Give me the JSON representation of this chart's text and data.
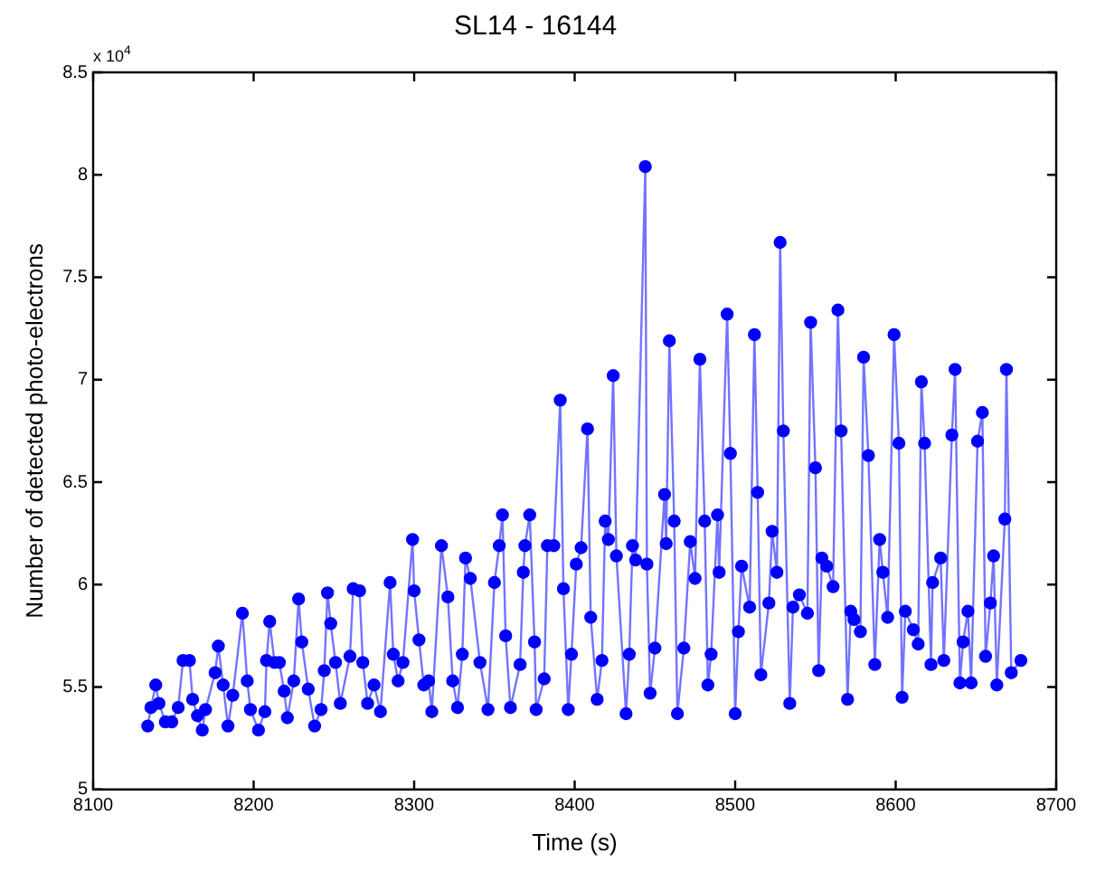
{
  "chart_data": {
    "type": "line",
    "title": "SL14 - 16144",
    "xlabel": "Time (s)",
    "ylabel": "Number of detected photo-electrons",
    "annotations": [
      "x 10$^{4}$"
    ],
    "xlim": [
      8100,
      8700
    ],
    "xticks": [
      8100,
      8200,
      8300,
      8400,
      8500,
      8600,
      8700
    ],
    "ylim": [
      5,
      8.5
    ],
    "yticks": [
      5,
      5.5,
      6,
      6.5,
      7,
      7.5,
      8,
      8.5
    ],
    "grid": false,
    "legend": false,
    "marker": "circle",
    "line_style": "solid",
    "series": [
      {
        "color": "#0000ff",
        "x": [
          8134,
          8136,
          8139,
          8141,
          8145,
          8149,
          8153,
          8156,
          8160,
          8162,
          8165,
          8168,
          8170,
          8176,
          8178,
          8181,
          8184,
          8187,
          8193,
          8196,
          8198,
          8203,
          8207,
          8208,
          8210,
          8213,
          8216,
          8219,
          8221,
          8225,
          8228,
          8230,
          8234,
          8238,
          8242,
          8244,
          8246,
          8248,
          8251,
          8254,
          8260,
          8262,
          8266,
          8268,
          8271,
          8275,
          8279,
          8285,
          8287,
          8290,
          8293,
          8299,
          8300,
          8303,
          8306,
          8309,
          8311,
          8317,
          8321,
          8324,
          8327,
          8330,
          8332,
          8335,
          8341,
          8346,
          8350,
          8353,
          8355,
          8357,
          8360,
          8366,
          8368,
          8369,
          8372,
          8375,
          8376,
          8381,
          8383,
          8387,
          8391,
          8393,
          8396,
          8398,
          8401,
          8404,
          8408,
          8410,
          8414,
          8417,
          8419,
          8421,
          8424,
          8426,
          8432,
          8434,
          8436,
          8438,
          8444,
          8445,
          8447,
          8450,
          8456,
          8457,
          8459,
          8462,
          8464,
          8468,
          8472,
          8475,
          8478,
          8481,
          8483,
          8485,
          8489,
          8490,
          8495,
          8497,
          8500,
          8502,
          8504,
          8509,
          8512,
          8514,
          8516,
          8521,
          8523,
          8526,
          8528,
          8530,
          8534,
          8536,
          8540,
          8545,
          8547,
          8550,
          8552,
          8554,
          8557,
          8561,
          8564,
          8566,
          8570,
          8572,
          8574,
          8578,
          8580,
          8583,
          8587,
          8590,
          8592,
          8595,
          8599,
          8602,
          8604,
          8606,
          8611,
          8614,
          8616,
          8618,
          8622,
          8623,
          8628,
          8630,
          8635,
          8637,
          8640,
          8642,
          8645,
          8647,
          8651,
          8654,
          8656,
          8659,
          8661,
          8663,
          8668,
          8669,
          8672,
          8678
        ],
        "values": [
          5.31,
          5.4,
          5.51,
          5.42,
          5.33,
          5.33,
          5.4,
          5.63,
          5.63,
          5.44,
          5.36,
          5.29,
          5.39,
          5.57,
          5.7,
          5.51,
          5.31,
          5.46,
          5.86,
          5.53,
          5.39,
          5.29,
          5.38,
          5.63,
          5.82,
          5.62,
          5.62,
          5.48,
          5.35,
          5.53,
          5.93,
          5.72,
          5.49,
          5.31,
          5.39,
          5.58,
          5.96,
          5.81,
          5.62,
          5.42,
          5.65,
          5.98,
          5.97,
          5.62,
          5.42,
          5.51,
          5.38,
          6.01,
          5.66,
          5.53,
          5.62,
          6.22,
          5.97,
          5.73,
          5.51,
          5.53,
          5.38,
          6.19,
          5.94,
          5.53,
          5.4,
          5.66,
          6.13,
          6.03,
          5.62,
          5.39,
          6.01,
          6.19,
          6.34,
          5.75,
          5.4,
          5.61,
          6.06,
          6.19,
          6.34,
          5.72,
          5.39,
          5.54,
          6.19,
          6.19,
          6.9,
          5.98,
          5.39,
          5.66,
          6.1,
          6.18,
          6.76,
          5.84,
          5.44,
          5.63,
          6.31,
          6.22,
          7.02,
          6.14,
          5.37,
          5.66,
          6.19,
          6.12,
          8.04,
          6.1,
          5.47,
          5.69,
          6.44,
          6.2,
          7.19,
          6.31,
          5.37,
          5.69,
          6.21,
          6.03,
          7.1,
          6.31,
          5.51,
          5.66,
          6.34,
          6.06,
          7.32,
          6.64,
          5.37,
          5.77,
          6.09,
          5.89,
          7.22,
          6.45,
          5.56,
          5.91,
          6.26,
          6.06,
          7.67,
          6.75,
          5.42,
          5.89,
          5.95,
          5.86,
          7.28,
          6.57,
          5.58,
          6.13,
          6.09,
          5.99,
          7.34,
          6.75,
          5.44,
          5.87,
          5.83,
          5.77,
          7.11,
          6.63,
          5.61,
          6.22,
          6.06,
          5.84,
          7.22,
          6.69,
          5.45,
          5.87,
          5.78,
          5.71,
          6.99,
          6.69,
          5.61,
          6.01,
          6.13,
          5.63,
          6.73,
          7.05,
          5.52,
          5.72,
          5.87,
          5.52,
          6.7,
          6.84,
          5.65,
          5.91,
          6.14,
          5.51,
          6.32,
          7.05,
          5.57,
          5.63
        ]
      }
    ]
  }
}
